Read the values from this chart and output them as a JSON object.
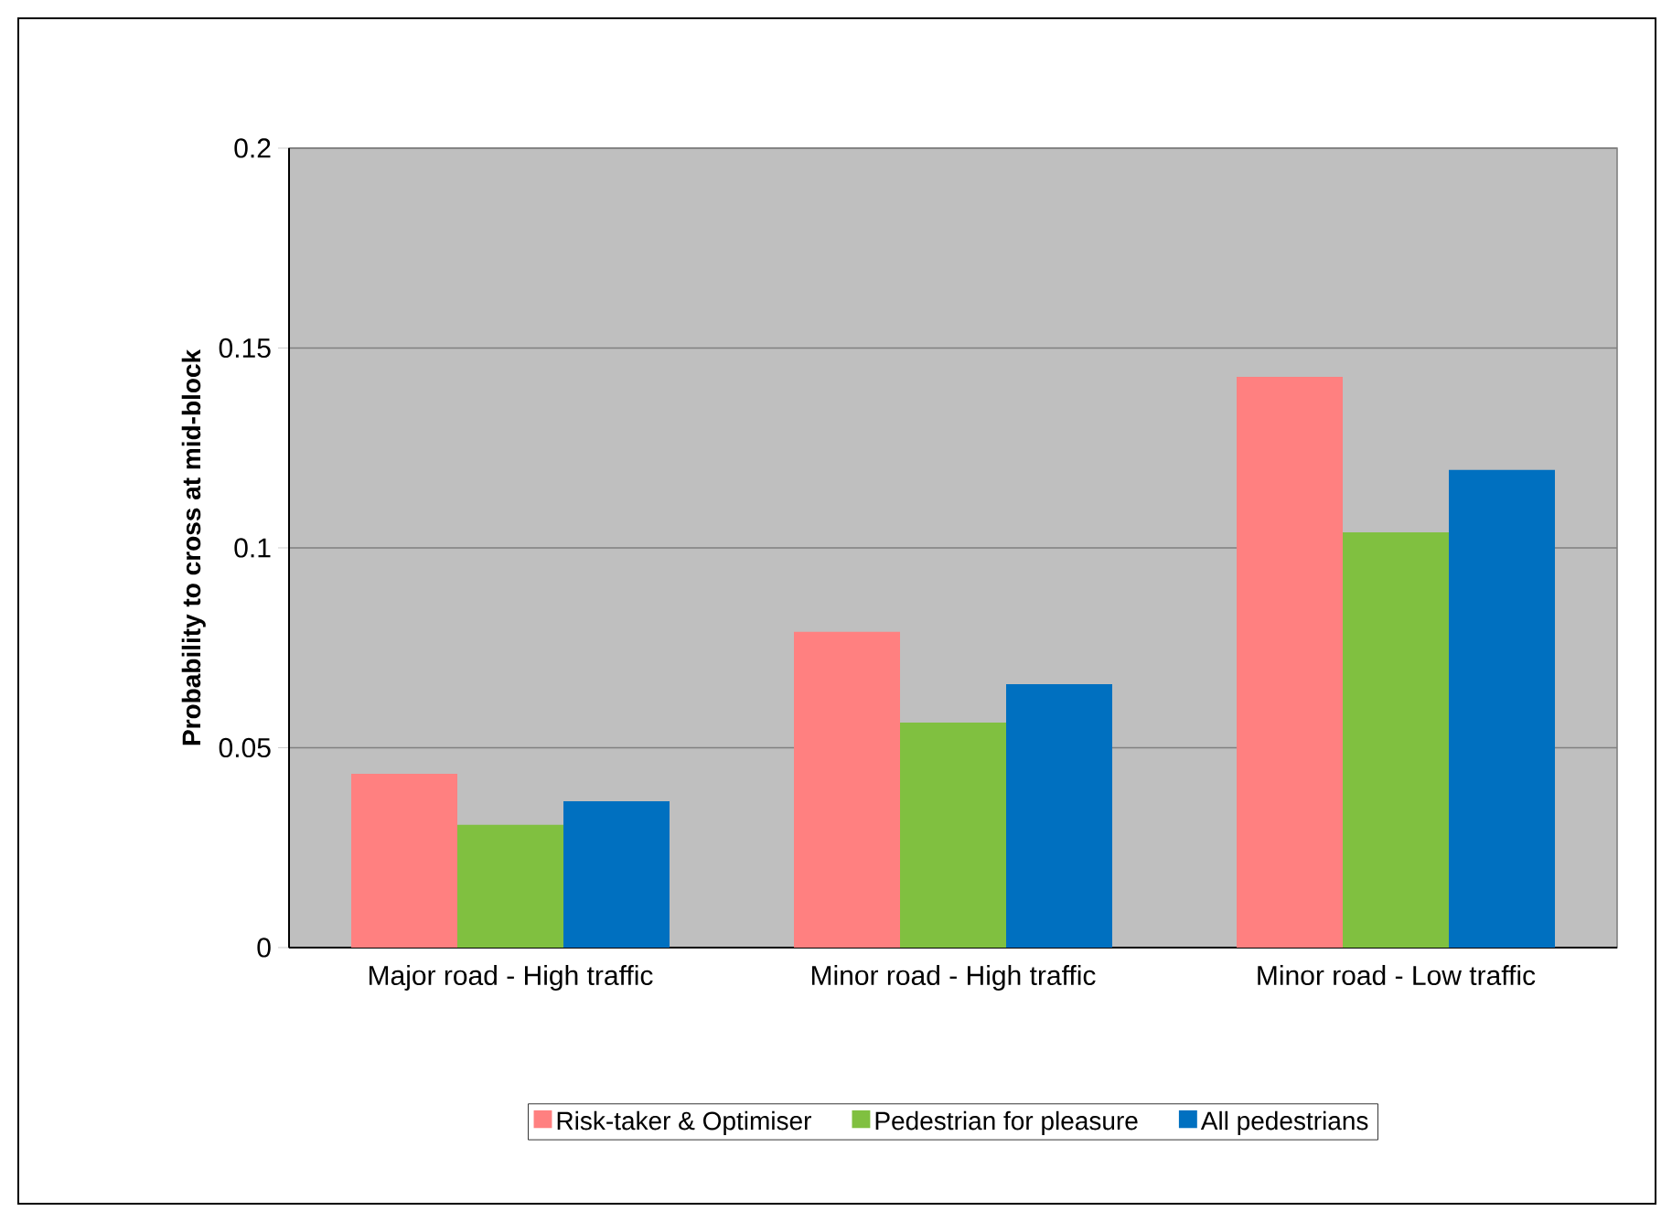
{
  "chart_data": {
    "type": "bar",
    "ylabel": "Probability to cross at mid-block",
    "categories": [
      "Major road - High traffic",
      "Minor road - High traffic",
      "Minor road - Low traffic"
    ],
    "series": [
      {
        "name": "Risk-taker & Optimiser",
        "color": "#ff8080",
        "values": [
          0.0435,
          0.079,
          0.1428
        ]
      },
      {
        "name": "Pedestrian for pleasure",
        "color": "#80c040",
        "values": [
          0.0307,
          0.0563,
          0.1039
        ]
      },
      {
        "name": "All pedestrians",
        "color": "#0070c0",
        "values": [
          0.0366,
          0.0659,
          0.1195
        ]
      }
    ],
    "ylim": [
      0,
      0.2
    ],
    "yticks": [
      0,
      0.05,
      0.1,
      0.15,
      0.2
    ],
    "grid": "y",
    "legend": "bottom"
  }
}
